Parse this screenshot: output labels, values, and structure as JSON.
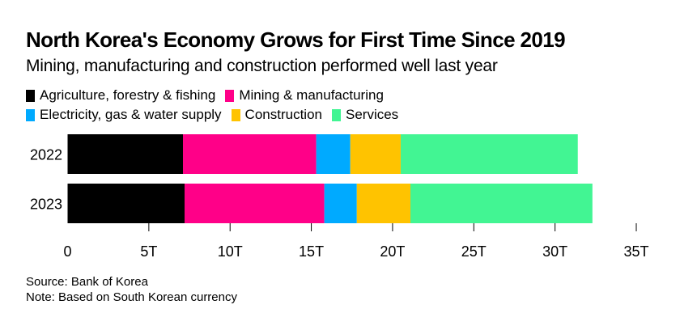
{
  "chart_data": {
    "type": "bar",
    "orientation": "horizontal",
    "stacked": true,
    "title": "North Korea's Economy Grows for First Time Since 2019",
    "subtitle": "Mining, manufacturing and construction performed well last year",
    "categories": [
      "2022",
      "2023"
    ],
    "series": [
      {
        "name": "Agriculture, forestry & fishing",
        "color": "#000000",
        "values": [
          7.1,
          7.2
        ]
      },
      {
        "name": "Mining & manufacturing",
        "color": "#ff0088",
        "values": [
          8.2,
          8.6
        ]
      },
      {
        "name": "Electricity, gas & water supply",
        "color": "#00aaff",
        "values": [
          2.1,
          2.0
        ]
      },
      {
        "name": "Construction",
        "color": "#ffc300",
        "values": [
          3.1,
          3.3
        ]
      },
      {
        "name": "Services",
        "color": "#42f593",
        "values": [
          10.9,
          11.2
        ]
      }
    ],
    "xlim": [
      0,
      35
    ],
    "xticks": [
      0,
      5,
      10,
      15,
      20,
      25,
      30,
      35
    ],
    "xtick_labels": [
      "0",
      "5T",
      "10T",
      "15T",
      "20T",
      "25T",
      "30T",
      "35T"
    ],
    "xlabel": "",
    "ylabel": "",
    "grid": false,
    "legend_position": "top-left"
  },
  "legend_rows": [
    [
      0,
      1
    ],
    [
      2,
      3,
      4
    ]
  ],
  "footer": {
    "source": "Source: Bank of Korea",
    "note": "Note: Based on South Korean currency"
  }
}
